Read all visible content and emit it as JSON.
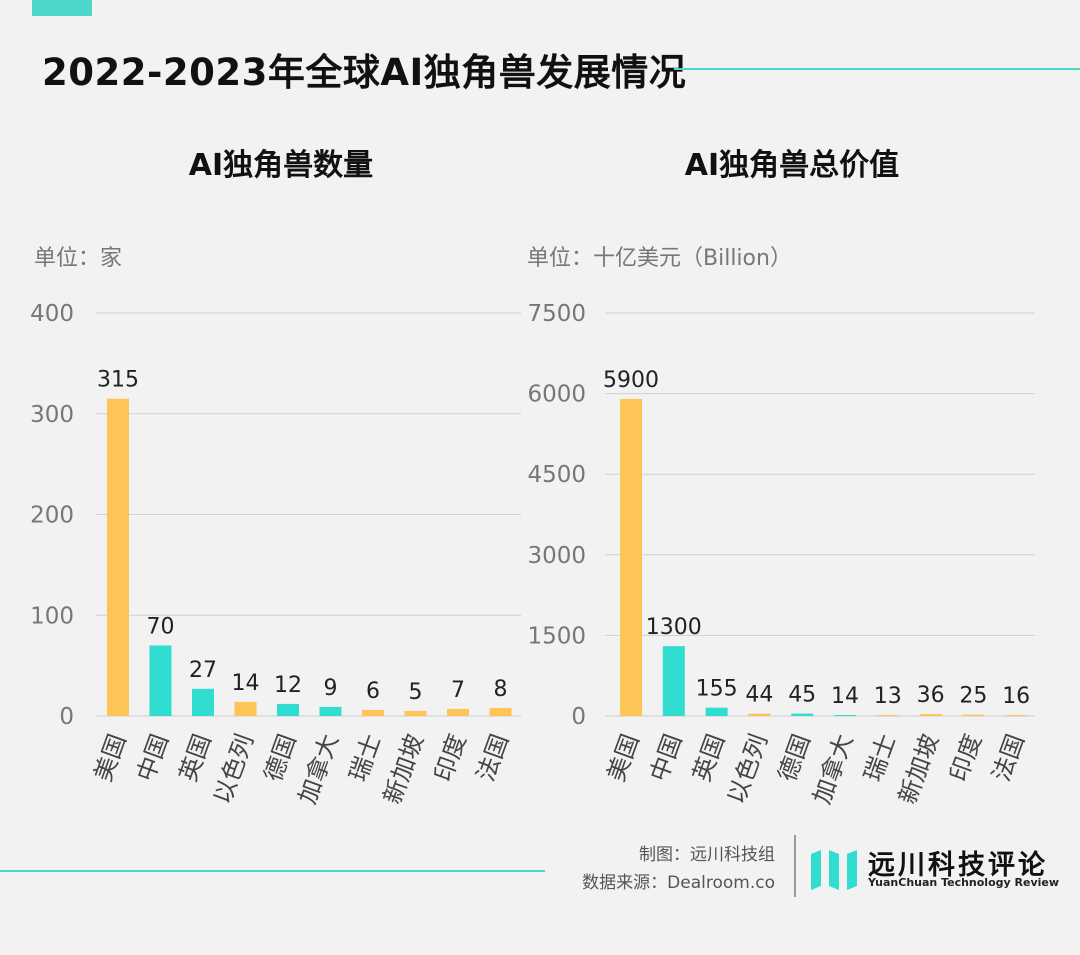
{
  "title": "2022-2023年全球AI独角兽发展情况",
  "charts": [
    {
      "title": "AI独角兽数量",
      "unit": "单位：家"
    },
    {
      "title": "AI独角兽总价值",
      "unit": "单位：十亿美元（Billion）"
    }
  ],
  "chart_data": [
    {
      "type": "bar",
      "title": "AI独角兽数量",
      "ylabel": "单位：家",
      "categories": [
        "美国",
        "中国",
        "英国",
        "以色列",
        "德国",
        "加拿大",
        "瑞士",
        "新加坡",
        "印度",
        "法国"
      ],
      "values": [
        315,
        70,
        27,
        14,
        12,
        9,
        6,
        5,
        7,
        8
      ],
      "data_labels": [
        "315",
        "70",
        "27",
        "14",
        "12",
        "9",
        "6",
        "5",
        "7",
        "8"
      ],
      "colors": [
        "#ffc457",
        "#31dcd1",
        "#31dcd1",
        "#ffc457",
        "#31dcd1",
        "#31dcd1",
        "#ffc457",
        "#ffc457",
        "#ffc457",
        "#ffc457"
      ],
      "ylim": [
        0,
        400
      ],
      "yticks": [
        0,
        100,
        200,
        300,
        400
      ],
      "ytick_labels": [
        "0",
        "100",
        "200",
        "300",
        "400"
      ],
      "grid": true,
      "legend": "none"
    },
    {
      "type": "bar",
      "title": "AI独角兽总价值",
      "ylabel": "单位：十亿美元（Billion）",
      "categories": [
        "美国",
        "中国",
        "英国",
        "以色列",
        "德国",
        "加拿大",
        "瑞士",
        "新加坡",
        "印度",
        "法国"
      ],
      "values": [
        5900,
        1300,
        155,
        44,
        45,
        14,
        13,
        36,
        25,
        16
      ],
      "data_labels": [
        "5900",
        "1300",
        "155",
        "44",
        "45",
        "14",
        "13",
        "36",
        "25",
        "16"
      ],
      "colors": [
        "#ffc457",
        "#31dcd1",
        "#31dcd1",
        "#ffc457",
        "#31dcd1",
        "#31dcd1",
        "#ffc457",
        "#ffc457",
        "#ffc457",
        "#ffc457"
      ],
      "ylim": [
        0,
        7500
      ],
      "yticks": [
        0,
        1500,
        3000,
        4500,
        6000,
        7500
      ],
      "ytick_labels": [
        "0",
        "1500",
        "3000",
        "4500",
        "6000",
        "7500"
      ],
      "grid": true,
      "legend": "none"
    }
  ],
  "footer": {
    "credit_line1": "制图：远川科技组",
    "credit_line2": "数据来源：Dealroom.co",
    "logo_cn": "远川科技评论",
    "logo_en": "YuanChuan Technology Review",
    "accent_color": "#4fd6cc"
  }
}
